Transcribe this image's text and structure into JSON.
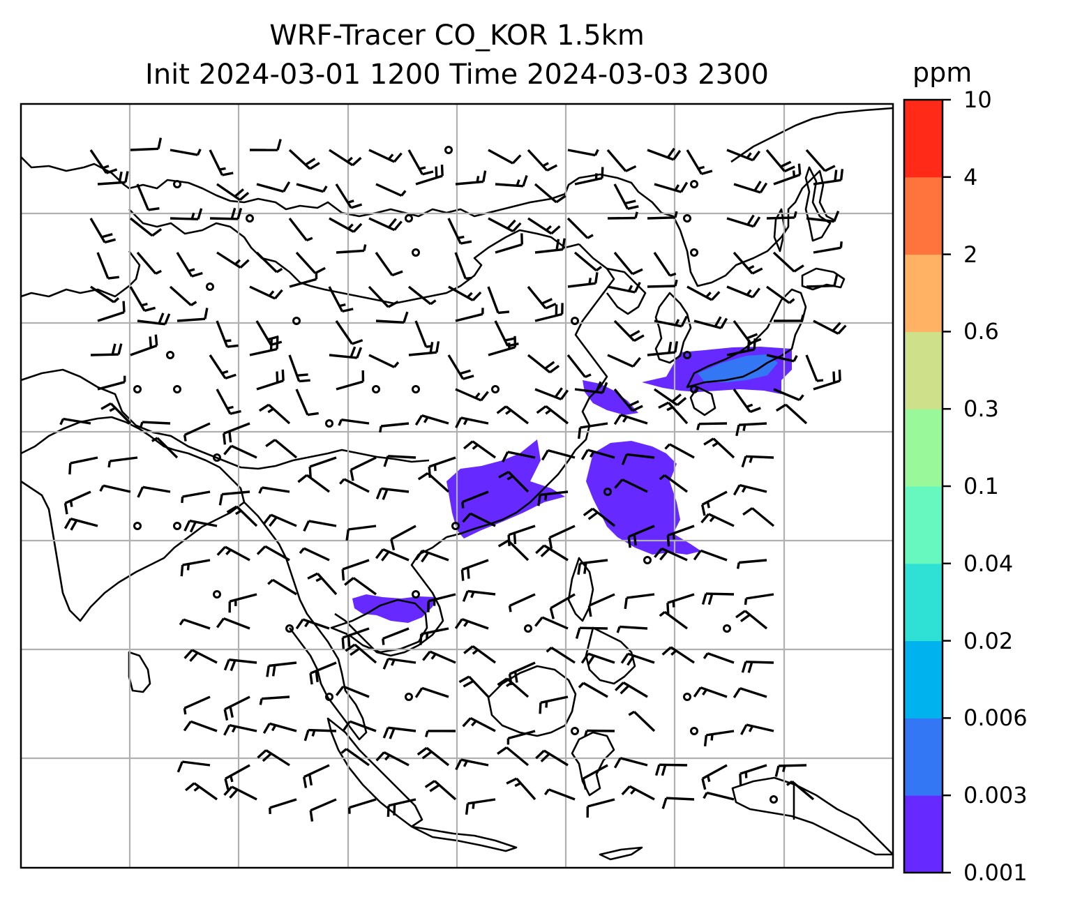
{
  "title_line1": "WRF-Tracer CO_KOR 1.5km",
  "title_line2": "Init 2024-03-01 1200 Time 2024-03-03 2300",
  "colorbar": {
    "unit": "ppm",
    "ticks": [
      "0.001",
      "0.003",
      "0.006",
      "0.02",
      "0.04",
      "0.1",
      "0.3",
      "0.6",
      "2",
      "4",
      "10"
    ],
    "colors": [
      "#6629ff",
      "#3377f5",
      "#00b2ee",
      "#2fe0d5",
      "#66f8bf",
      "#99f89a",
      "#cfe08a",
      "#ffb164",
      "#ff733d",
      "#ff2a18"
    ]
  },
  "map": {
    "concentration_color": "#6629ff",
    "concentration_color_high": "#3377f5",
    "grid_color": "#b0b0b0"
  }
}
